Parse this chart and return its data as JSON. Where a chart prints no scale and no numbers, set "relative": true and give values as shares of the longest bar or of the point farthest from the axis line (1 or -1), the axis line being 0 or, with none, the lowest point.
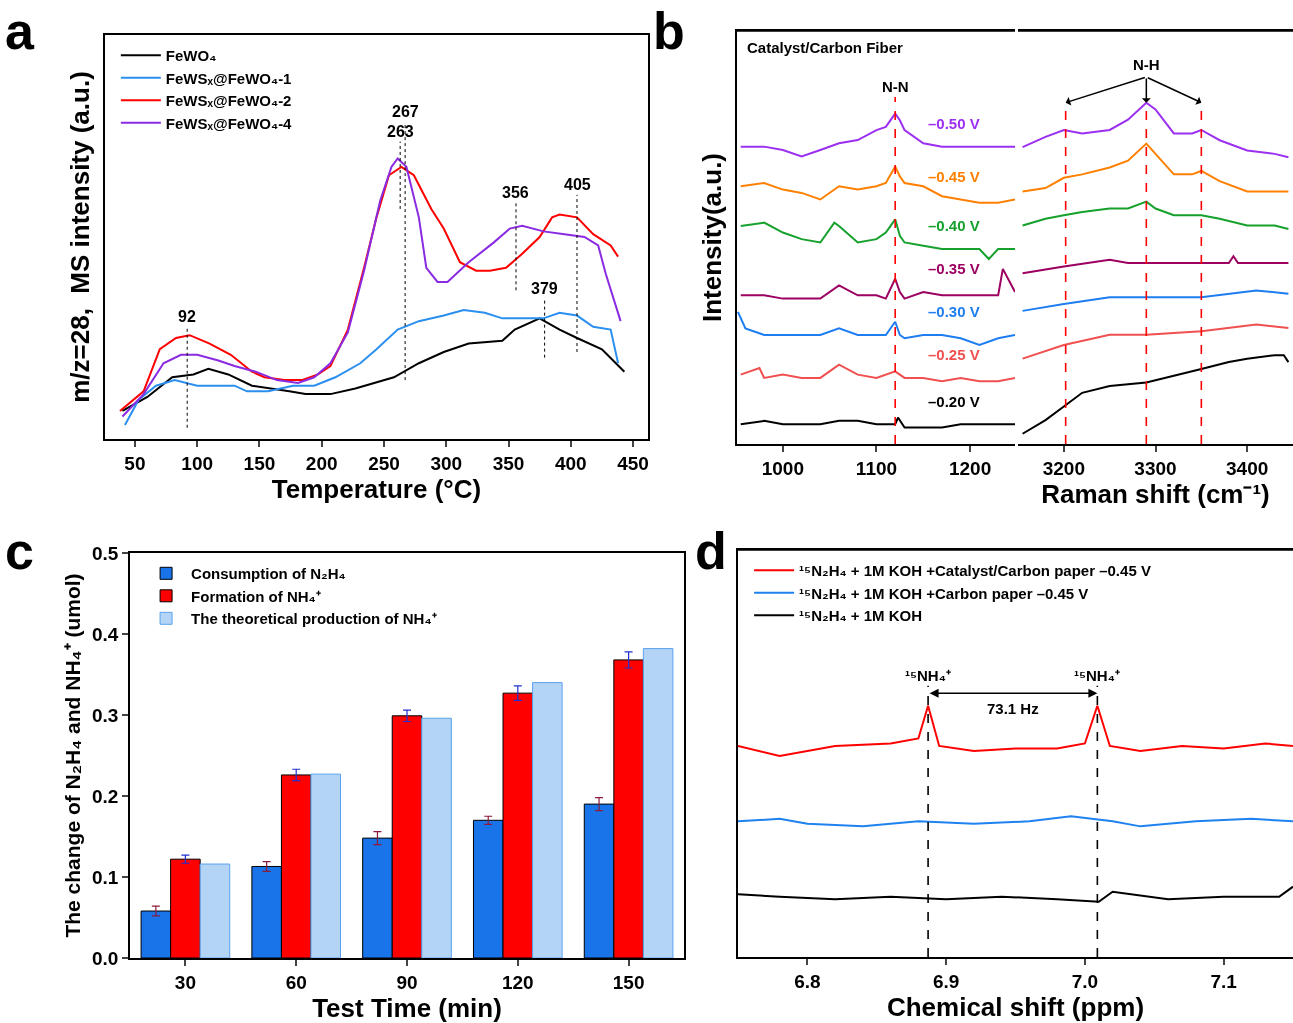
{
  "chart_data": [
    {
      "type": "line",
      "title": "a",
      "xlabel": "Temperature (°C)",
      "ylabel": "m/z=28,  MS intensity (a.u.)",
      "relative": true,
      "xlim": [
        26,
        462
      ],
      "xticks": [
        50,
        100,
        150,
        200,
        250,
        300,
        350,
        400,
        450
      ],
      "legend": "top left",
      "series": [
        {
          "name": "FeWO₄",
          "color": "#000000",
          "x": [
            40,
            60,
            80,
            97,
            109,
            125,
            144,
            174,
            187,
            207,
            227,
            258,
            278,
            298,
            318,
            345,
            355,
            375,
            391,
            405,
            425,
            443
          ],
          "values": [
            0.1,
            0.15,
            0.22,
            0.23,
            0.25,
            0.23,
            0.19,
            0.17,
            0.16,
            0.16,
            0.18,
            0.22,
            0.27,
            0.31,
            0.34,
            0.35,
            0.39,
            0.43,
            0.39,
            0.36,
            0.32,
            0.24
          ]
        },
        {
          "name": "FeWSₓ@FeWO₄-1",
          "color": "#2b8ff0",
          "x": [
            42,
            53,
            67,
            82,
            100,
            117,
            130,
            140,
            157,
            177,
            194,
            211,
            231,
            244,
            261,
            278,
            298,
            314,
            331,
            345,
            365,
            378,
            391,
            405,
            418,
            432,
            438
          ],
          "values": [
            0.05,
            0.14,
            0.19,
            0.21,
            0.19,
            0.19,
            0.19,
            0.17,
            0.17,
            0.19,
            0.19,
            0.22,
            0.27,
            0.32,
            0.39,
            0.42,
            0.44,
            0.46,
            0.45,
            0.43,
            0.43,
            0.43,
            0.45,
            0.44,
            0.4,
            0.39,
            0.27
          ]
        },
        {
          "name": "FeWSₓ@FeWO₄-2",
          "color": "#ff0000",
          "x": [
            38,
            57,
            70,
            83,
            94,
            110,
            127,
            144,
            154,
            170,
            184,
            197,
            207,
            221,
            234,
            244,
            254,
            264,
            274,
            288,
            298,
            311,
            324,
            335,
            348,
            361,
            375,
            385,
            391,
            405,
            418,
            432,
            438
          ],
          "values": [
            0.1,
            0.17,
            0.32,
            0.36,
            0.37,
            0.34,
            0.3,
            0.24,
            0.22,
            0.21,
            0.21,
            0.23,
            0.26,
            0.39,
            0.61,
            0.79,
            0.94,
            0.97,
            0.94,
            0.82,
            0.75,
            0.63,
            0.6,
            0.6,
            0.61,
            0.66,
            0.72,
            0.79,
            0.8,
            0.79,
            0.73,
            0.69,
            0.65
          ]
        },
        {
          "name": "FeWSₓ@FeWO₄-4",
          "color": "#8a2be2",
          "x": [
            40,
            57,
            73,
            87,
            100,
            117,
            130,
            147,
            164,
            181,
            194,
            207,
            221,
            234,
            247,
            256,
            261,
            268,
            278,
            284,
            293,
            301,
            318,
            338,
            351,
            361,
            378,
            395,
            411,
            422,
            428,
            440
          ],
          "values": [
            0.08,
            0.16,
            0.27,
            0.3,
            0.3,
            0.28,
            0.26,
            0.24,
            0.21,
            0.2,
            0.22,
            0.27,
            0.38,
            0.6,
            0.85,
            0.97,
            1.0,
            0.97,
            0.79,
            0.61,
            0.56,
            0.56,
            0.63,
            0.7,
            0.75,
            0.76,
            0.74,
            0.73,
            0.72,
            0.69,
            0.59,
            0.42
          ]
        }
      ],
      "ref_lines": [
        {
          "axis": "x",
          "value": 92,
          "label": "92",
          "color": "#000000",
          "line_style": "dotted"
        },
        {
          "axis": "x",
          "value": 263,
          "label": "263",
          "color": "#000000",
          "line_style": "dotted"
        },
        {
          "axis": "x",
          "value": 267,
          "label": "267",
          "color": "#000000",
          "line_style": "dotted"
        },
        {
          "axis": "x",
          "value": 356,
          "label": "356",
          "color": "#000000",
          "line_style": "dotted"
        },
        {
          "axis": "x",
          "value": 379,
          "label": "379",
          "color": "#000000",
          "line_style": "dotted"
        },
        {
          "axis": "x",
          "value": 405,
          "label": "405",
          "color": "#000000",
          "line_style": "dotted"
        }
      ]
    },
    {
      "type": "line",
      "title": "b",
      "ylabel": "Intensity(a.u.)",
      "relative": true,
      "xlim": [
        951,
        1248
      ],
      "xticks": [
        1000,
        1100,
        1200
      ],
      "legend": false,
      "annotations": [
        "Catalyst/Carbon Fiber"
      ],
      "ref_lines": [
        {
          "axis": "x",
          "value": 1120,
          "label": "N-N",
          "color": "#ff0000",
          "line_style": "dashed"
        }
      ],
      "series": [
        {
          "name": "–0.50 V",
          "color": "#9b30f0",
          "x": [
            955,
            980,
            1000,
            1020,
            1040,
            1060,
            1080,
            1100,
            1110,
            1120,
            1125,
            1130,
            1150,
            1170,
            1190,
            1210,
            1230,
            1248
          ],
          "values": [
            0.9,
            0.9,
            0.89,
            0.87,
            0.89,
            0.91,
            0.92,
            0.95,
            0.96,
            1.0,
            0.98,
            0.95,
            0.91,
            0.9,
            0.9,
            0.9,
            0.9,
            0.9
          ]
        },
        {
          "name": "–0.45 V",
          "color": "#ff8000",
          "x": [
            955,
            980,
            1000,
            1020,
            1040,
            1060,
            1080,
            1100,
            1110,
            1120,
            1125,
            1130,
            1150,
            1170,
            1190,
            1210,
            1230,
            1248
          ],
          "values": [
            0.78,
            0.79,
            0.77,
            0.76,
            0.74,
            0.78,
            0.77,
            0.78,
            0.79,
            0.84,
            0.81,
            0.79,
            0.78,
            0.75,
            0.74,
            0.73,
            0.73,
            0.74
          ]
        },
        {
          "name": "–0.40 V",
          "color": "#16a02c",
          "x": [
            955,
            980,
            1000,
            1020,
            1040,
            1055,
            1060,
            1080,
            1100,
            1110,
            1120,
            1125,
            1130,
            1150,
            1170,
            1190,
            1210,
            1220,
            1230,
            1248
          ],
          "values": [
            0.66,
            0.67,
            0.64,
            0.62,
            0.61,
            0.67,
            0.66,
            0.61,
            0.62,
            0.64,
            0.68,
            0.63,
            0.61,
            0.6,
            0.59,
            0.59,
            0.59,
            0.56,
            0.59,
            0.59
          ]
        },
        {
          "name": "–0.35 V",
          "color": "#9c0060",
          "x": [
            955,
            980,
            1000,
            1020,
            1040,
            1060,
            1080,
            1100,
            1110,
            1120,
            1125,
            1130,
            1150,
            1170,
            1190,
            1210,
            1230,
            1235,
            1248
          ],
          "values": [
            0.45,
            0.45,
            0.44,
            0.44,
            0.44,
            0.48,
            0.45,
            0.45,
            0.44,
            0.5,
            0.46,
            0.44,
            0.46,
            0.45,
            0.45,
            0.45,
            0.45,
            0.53,
            0.46
          ]
        },
        {
          "name": "–0.30 V",
          "color": "#1e7df0",
          "x": [
            952,
            960,
            980,
            1000,
            1020,
            1040,
            1060,
            1080,
            1100,
            1110,
            1120,
            1125,
            1130,
            1150,
            1170,
            1190,
            1210,
            1230,
            1248
          ],
          "values": [
            0.4,
            0.35,
            0.33,
            0.33,
            0.33,
            0.33,
            0.35,
            0.33,
            0.33,
            0.33,
            0.37,
            0.33,
            0.32,
            0.33,
            0.33,
            0.32,
            0.3,
            0.32,
            0.33
          ]
        },
        {
          "name": "–0.25 V",
          "color": "#f05050",
          "x": [
            955,
            975,
            980,
            1000,
            1020,
            1040,
            1060,
            1080,
            1100,
            1120,
            1130,
            1150,
            1170,
            1190,
            1210,
            1230,
            1248
          ],
          "values": [
            0.21,
            0.23,
            0.2,
            0.21,
            0.2,
            0.2,
            0.24,
            0.21,
            0.2,
            0.22,
            0.2,
            0.2,
            0.19,
            0.2,
            0.19,
            0.19,
            0.2
          ]
        },
        {
          "name": "–0.20 V",
          "color": "#000000",
          "x": [
            955,
            980,
            1000,
            1020,
            1040,
            1060,
            1080,
            1100,
            1110,
            1120,
            1123,
            1130,
            1150,
            1170,
            1190,
            1210,
            1230,
            1248
          ],
          "values": [
            0.06,
            0.07,
            0.06,
            0.06,
            0.06,
            0.07,
            0.07,
            0.06,
            0.06,
            0.06,
            0.08,
            0.05,
            0.05,
            0.05,
            0.06,
            0.06,
            0.06,
            0.06
          ]
        }
      ]
    },
    {
      "type": "line",
      "xlabel": "Raman shift (cm⁻¹)",
      "relative": true,
      "xlim": [
        3150,
        3450
      ],
      "xticks": [
        3200,
        3300,
        3400
      ],
      "legend": false,
      "annotations": [
        "N-H"
      ],
      "ref_lines": [
        {
          "axis": "x",
          "value": 3202,
          "label": null,
          "color": "#ff0000",
          "line_style": "dashed"
        },
        {
          "axis": "x",
          "value": 3290,
          "label": null,
          "color": "#ff0000",
          "line_style": "dashed"
        },
        {
          "axis": "x",
          "value": 3350,
          "label": null,
          "color": "#ff0000",
          "line_style": "dashed"
        }
      ],
      "series": [
        {
          "color": "#9b30f0",
          "x": [
            3155,
            3180,
            3200,
            3220,
            3250,
            3270,
            3290,
            3300,
            3320,
            3340,
            3350,
            3370,
            3400,
            3430,
            3445
          ],
          "values": [
            0.87,
            0.9,
            0.92,
            0.91,
            0.92,
            0.95,
            1.0,
            0.98,
            0.91,
            0.91,
            0.92,
            0.89,
            0.86,
            0.85,
            0.84
          ]
        },
        {
          "color": "#ff8000",
          "x": [
            3155,
            3180,
            3200,
            3220,
            3250,
            3270,
            3290,
            3300,
            3320,
            3340,
            3350,
            3370,
            3400,
            3430,
            3445
          ],
          "values": [
            0.74,
            0.75,
            0.78,
            0.79,
            0.81,
            0.83,
            0.88,
            0.85,
            0.79,
            0.79,
            0.8,
            0.77,
            0.74,
            0.74,
            0.74
          ]
        },
        {
          "color": "#16a02c",
          "x": [
            3155,
            3180,
            3200,
            3220,
            3250,
            3270,
            3290,
            3300,
            3320,
            3340,
            3350,
            3370,
            3400,
            3430,
            3445
          ],
          "values": [
            0.64,
            0.66,
            0.67,
            0.68,
            0.69,
            0.69,
            0.71,
            0.69,
            0.67,
            0.67,
            0.67,
            0.66,
            0.64,
            0.64,
            0.63
          ]
        },
        {
          "color": "#9c0060",
          "x": [
            3155,
            3200,
            3250,
            3270,
            3300,
            3340,
            3380,
            3385,
            3390,
            3445
          ],
          "values": [
            0.5,
            0.52,
            0.54,
            0.53,
            0.53,
            0.53,
            0.53,
            0.55,
            0.53,
            0.53
          ]
        },
        {
          "color": "#1e7df0",
          "x": [
            3155,
            3200,
            3250,
            3290,
            3350,
            3410,
            3445
          ],
          "values": [
            0.39,
            0.41,
            0.43,
            0.43,
            0.43,
            0.45,
            0.44
          ]
        },
        {
          "color": "#f05050",
          "x": [
            3155,
            3200,
            3250,
            3290,
            3350,
            3410,
            3445
          ],
          "values": [
            0.25,
            0.29,
            0.32,
            0.32,
            0.33,
            0.35,
            0.34
          ]
        },
        {
          "color": "#000000",
          "x": [
            3155,
            3180,
            3200,
            3220,
            3250,
            3290,
            3320,
            3350,
            3380,
            3400,
            3430,
            3440,
            3445
          ],
          "values": [
            0.03,
            0.07,
            0.11,
            0.15,
            0.17,
            0.18,
            0.2,
            0.22,
            0.24,
            0.25,
            0.26,
            0.26,
            0.24
          ]
        }
      ]
    },
    {
      "type": "bar",
      "title": "c",
      "categories": [
        "30",
        "60",
        "90",
        "120",
        "150"
      ],
      "xlabel": "Test Time (min)",
      "ylabel": "The change of N₂H₄ and NH₄⁺ (umol)",
      "ylim": [
        0,
        0.5
      ],
      "yticks": [
        {
          "value": 0,
          "label": "0.0"
        },
        0.1,
        0.2,
        0.3,
        0.4,
        0.5
      ],
      "legend": "top left",
      "series": [
        {
          "name": "Consumption of N₂H₄",
          "color": "#1874e8",
          "values": [
            0.058,
            0.113,
            0.148,
            0.17,
            0.19
          ],
          "errors": [
            0.006,
            0.006,
            0.008,
            0.005,
            0.008
          ]
        },
        {
          "name": "Formation of NH₄⁺",
          "color": "#ff0000",
          "values": [
            0.122,
            0.226,
            0.299,
            0.327,
            0.368
          ],
          "errors": [
            0.005,
            0.007,
            0.007,
            0.009,
            0.01
          ]
        },
        {
          "name": "The theoretical production of NH₄⁺",
          "color": "#b4d4f6",
          "values": [
            0.116,
            0.227,
            0.296,
            0.34,
            0.382
          ]
        }
      ]
    },
    {
      "type": "line",
      "title": "d",
      "xlabel": "Chemical shift (ppm)",
      "relative": true,
      "xlim": [
        6.75,
        7.15
      ],
      "xticks": [
        6.8,
        6.9,
        {
          "value": 7.0,
          "label": "7.0"
        },
        7.1
      ],
      "legend": "top left",
      "ref_lines": [
        {
          "axis": "x",
          "value": 6.887,
          "label": "¹⁵NH₄⁺",
          "color": "#000000",
          "line_style": "dashed"
        },
        {
          "axis": "x",
          "value": 7.009,
          "label": "¹⁵NH₄⁺",
          "color": "#000000",
          "line_style": "dashed"
        }
      ],
      "annotations": [
        "73.1 Hz"
      ],
      "series": [
        {
          "name": "¹⁵N₂H₄ + 1M KOH +Catalyst/Carbon paper –0.45 V",
          "color": "#ff0000",
          "x": [
            6.75,
            6.78,
            6.82,
            6.86,
            6.88,
            6.887,
            6.895,
            6.92,
            6.95,
            6.98,
            7.0,
            7.009,
            7.018,
            7.04,
            7.07,
            7.1,
            7.13,
            7.15
          ],
          "values": [
            0.84,
            0.8,
            0.84,
            0.85,
            0.87,
            1.0,
            0.84,
            0.82,
            0.83,
            0.83,
            0.85,
            1.0,
            0.84,
            0.82,
            0.84,
            0.83,
            0.85,
            0.84
          ]
        },
        {
          "name": "¹⁵N₂H₄ + 1M KOH +Carbon paper –0.45 V",
          "color": "#1e82f0",
          "x": [
            6.75,
            6.78,
            6.8,
            6.84,
            6.88,
            6.92,
            6.96,
            6.99,
            7.02,
            7.04,
            7.08,
            7.12,
            7.15
          ],
          "values": [
            0.54,
            0.55,
            0.53,
            0.52,
            0.54,
            0.53,
            0.54,
            0.56,
            0.54,
            0.52,
            0.54,
            0.55,
            0.54
          ]
        },
        {
          "name": "¹⁵N₂H₄ + 1M KOH",
          "color": "#000000",
          "x": [
            6.75,
            6.78,
            6.82,
            6.86,
            6.9,
            6.94,
            6.98,
            7.01,
            7.02,
            7.06,
            7.1,
            7.14,
            7.15
          ],
          "values": [
            0.25,
            0.24,
            0.23,
            0.24,
            0.23,
            0.24,
            0.23,
            0.22,
            0.26,
            0.23,
            0.24,
            0.24,
            0.28
          ]
        }
      ]
    }
  ]
}
